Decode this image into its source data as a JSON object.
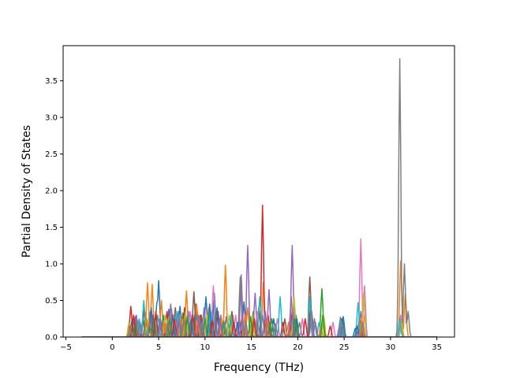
{
  "chart_data": {
    "type": "line",
    "title": "",
    "xlabel": "Frequency (THz)",
    "ylabel": "Partial Density of States",
    "xlim": [
      -5.3,
      36.9
    ],
    "ylim": [
      0,
      3.98
    ],
    "xticks": [
      -5,
      0,
      5,
      10,
      15,
      20,
      25,
      30,
      35
    ],
    "xtick_labels": [
      "−5",
      "0",
      "5",
      "10",
      "15",
      "20",
      "25",
      "30",
      "35"
    ],
    "yticks": [
      0.0,
      0.5,
      1.0,
      1.5,
      2.0,
      2.5,
      3.0,
      3.5
    ],
    "ytick_labels": [
      "0.0",
      "0.5",
      "1.0",
      "1.5",
      "2.0",
      "2.5",
      "3.0",
      "3.5"
    ],
    "grid": false,
    "legend": "none",
    "series": [
      {
        "color": "#1f77b4",
        "peaks": [
          [
            2.5,
            0.28
          ],
          [
            3.6,
            0.33
          ],
          [
            4.8,
            0.46
          ],
          [
            5.0,
            0.77
          ],
          [
            6.1,
            0.38
          ],
          [
            7.3,
            0.42
          ],
          [
            9.0,
            0.45
          ],
          [
            10.1,
            0.55
          ],
          [
            11.0,
            0.6
          ],
          [
            12.3,
            0.28
          ],
          [
            14.2,
            0.48
          ],
          [
            16.0,
            0.18
          ],
          [
            19.4,
            0.2
          ],
          [
            24.7,
            0.25
          ],
          [
            26.2,
            0.12
          ]
        ]
      },
      {
        "color": "#ff7f0e",
        "peaks": [
          [
            2.8,
            0.22
          ],
          [
            3.8,
            0.74
          ],
          [
            4.3,
            0.72
          ],
          [
            5.3,
            0.5
          ],
          [
            6.4,
            0.38
          ],
          [
            8.0,
            0.63
          ],
          [
            9.1,
            0.45
          ],
          [
            10.4,
            0.4
          ],
          [
            12.2,
            0.98
          ],
          [
            13.0,
            0.3
          ],
          [
            14.6,
            0.4
          ],
          [
            16.3,
            0.75
          ],
          [
            19.5,
            0.4
          ],
          [
            21.3,
            0.3
          ],
          [
            27.2,
            0.3
          ],
          [
            31.1,
            1.04
          ],
          [
            31.6,
            0.6
          ]
        ]
      },
      {
        "color": "#2ca02c",
        "peaks": [
          [
            2.3,
            0.18
          ],
          [
            3.3,
            0.25
          ],
          [
            5.5,
            0.3
          ],
          [
            7.6,
            0.33
          ],
          [
            9.6,
            0.3
          ],
          [
            12.5,
            0.2
          ],
          [
            15.2,
            0.35
          ],
          [
            17.2,
            0.25
          ],
          [
            19.8,
            0.3
          ],
          [
            22.6,
            0.66
          ],
          [
            26.9,
            0.22
          ],
          [
            31.1,
            0.15
          ]
        ]
      },
      {
        "color": "#d62728",
        "peaks": [
          [
            2.0,
            0.42
          ],
          [
            3.4,
            0.37
          ],
          [
            5.9,
            0.35
          ],
          [
            7.8,
            0.4
          ],
          [
            9.5,
            0.3
          ],
          [
            11.4,
            0.35
          ],
          [
            13.7,
            0.25
          ],
          [
            16.2,
            1.8
          ],
          [
            16.8,
            0.3
          ],
          [
            19.4,
            0.35
          ],
          [
            21.4,
            0.45
          ],
          [
            26.7,
            0.25
          ],
          [
            31.1,
            0.3
          ]
        ]
      },
      {
        "color": "#9467bd",
        "peaks": [
          [
            2.6,
            0.3
          ],
          [
            4.1,
            0.35
          ],
          [
            6.3,
            0.45
          ],
          [
            8.2,
            0.35
          ],
          [
            9.9,
            0.4
          ],
          [
            11.7,
            0.3
          ],
          [
            13.9,
            0.85
          ],
          [
            14.6,
            1.25
          ],
          [
            15.4,
            0.6
          ],
          [
            16.9,
            0.65
          ],
          [
            19.4,
            1.25
          ],
          [
            21.5,
            0.35
          ],
          [
            26.8,
            0.35
          ]
        ]
      },
      {
        "color": "#8c564b",
        "peaks": [
          [
            2.2,
            0.25
          ],
          [
            4.4,
            0.3
          ],
          [
            6.8,
            0.4
          ],
          [
            8.8,
            0.62
          ],
          [
            10.7,
            0.3
          ],
          [
            12.9,
            0.35
          ],
          [
            15.8,
            0.4
          ],
          [
            18.6,
            0.25
          ],
          [
            21.3,
            0.82
          ],
          [
            24.8,
            0.25
          ],
          [
            27.0,
            0.2
          ]
        ]
      },
      {
        "color": "#e377c2",
        "peaks": [
          [
            2.4,
            0.2
          ],
          [
            4.6,
            0.25
          ],
          [
            6.6,
            0.3
          ],
          [
            8.4,
            0.35
          ],
          [
            10.9,
            0.7
          ],
          [
            13.3,
            0.3
          ],
          [
            15.6,
            0.35
          ],
          [
            17.8,
            0.25
          ],
          [
            20.5,
            0.25
          ],
          [
            23.8,
            0.2
          ],
          [
            26.8,
            1.34
          ],
          [
            27.2,
            0.7
          ],
          [
            31.1,
            0.3
          ]
        ]
      },
      {
        "color": "#7f7f7f",
        "peaks": [
          [
            2.7,
            0.2
          ],
          [
            5.1,
            0.25
          ],
          [
            7.1,
            0.35
          ],
          [
            9.3,
            0.3
          ],
          [
            11.1,
            0.35
          ],
          [
            13.8,
            0.82
          ],
          [
            16.2,
            0.3
          ],
          [
            19.2,
            0.3
          ],
          [
            21.8,
            0.25
          ],
          [
            24.6,
            0.27
          ],
          [
            26.6,
            0.2
          ],
          [
            31.0,
            3.8
          ],
          [
            31.5,
            1.0
          ],
          [
            31.9,
            0.35
          ]
        ]
      },
      {
        "color": "#bcbd22",
        "peaks": [
          [
            1.8,
            0.2
          ],
          [
            3.9,
            0.25
          ],
          [
            5.7,
            0.3
          ],
          [
            7.9,
            0.35
          ],
          [
            10.2,
            0.3
          ],
          [
            12.6,
            0.3
          ],
          [
            15.1,
            0.3
          ],
          [
            19.6,
            0.55
          ],
          [
            22.8,
            0.3
          ],
          [
            27.1,
            0.6
          ],
          [
            31.2,
            0.2
          ]
        ]
      },
      {
        "color": "#17becf",
        "peaks": [
          [
            2.9,
            0.25
          ],
          [
            3.4,
            0.5
          ],
          [
            4.9,
            0.3
          ],
          [
            6.9,
            0.35
          ],
          [
            8.6,
            0.3
          ],
          [
            10.6,
            0.35
          ],
          [
            12.8,
            0.3
          ],
          [
            15.9,
            0.55
          ],
          [
            18.1,
            0.55
          ],
          [
            21.3,
            0.55
          ],
          [
            22.3,
            0.2
          ],
          [
            24.7,
            0.22
          ],
          [
            26.5,
            0.47
          ],
          [
            31.0,
            0.25
          ]
        ]
      },
      {
        "color": "#1f77b4",
        "peaks": [
          [
            2.1,
            0.22
          ],
          [
            4.2,
            0.4
          ],
          [
            6.5,
            0.3
          ],
          [
            8.5,
            0.25
          ],
          [
            10.5,
            0.45
          ],
          [
            11.3,
            0.4
          ],
          [
            13.5,
            0.2
          ],
          [
            17.4,
            0.25
          ],
          [
            19.9,
            0.25
          ],
          [
            24.9,
            0.28
          ],
          [
            26.4,
            0.15
          ]
        ]
      },
      {
        "color": "#ff7f0e",
        "peaks": [
          [
            2.0,
            0.15
          ],
          [
            3.7,
            0.25
          ],
          [
            5.6,
            0.2
          ],
          [
            7.4,
            0.25
          ],
          [
            9.2,
            0.22
          ],
          [
            11.8,
            0.25
          ],
          [
            14.3,
            0.3
          ],
          [
            16.7,
            0.25
          ],
          [
            19.0,
            0.2
          ],
          [
            22.5,
            0.15
          ],
          [
            26.9,
            0.25
          ]
        ]
      },
      {
        "color": "#2ca02c",
        "peaks": [
          [
            2.5,
            0.18
          ],
          [
            4.5,
            0.22
          ],
          [
            6.2,
            0.25
          ],
          [
            8.1,
            0.28
          ],
          [
            10.0,
            0.25
          ],
          [
            12.0,
            0.22
          ],
          [
            14.9,
            0.28
          ],
          [
            17.0,
            0.2
          ],
          [
            19.7,
            0.25
          ],
          [
            22.7,
            0.3
          ]
        ]
      },
      {
        "color": "#d62728",
        "peaks": [
          [
            2.3,
            0.3
          ],
          [
            4.7,
            0.35
          ],
          [
            6.7,
            0.25
          ],
          [
            8.7,
            0.3
          ],
          [
            10.8,
            0.22
          ],
          [
            13.1,
            0.2
          ],
          [
            15.3,
            0.25
          ],
          [
            18.4,
            0.2
          ],
          [
            20.8,
            0.25
          ],
          [
            23.5,
            0.15
          ]
        ]
      },
      {
        "color": "#9467bd",
        "peaks": [
          [
            3.0,
            0.2
          ],
          [
            5.2,
            0.25
          ],
          [
            7.2,
            0.3
          ],
          [
            9.4,
            0.28
          ],
          [
            11.6,
            0.25
          ],
          [
            14.0,
            0.3
          ],
          [
            16.5,
            0.35
          ],
          [
            19.3,
            0.55
          ],
          [
            21.9,
            0.2
          ],
          [
            24.5,
            0.15
          ]
        ]
      },
      {
        "color": "#7f7f7f",
        "peaks": [
          [
            1.9,
            0.15
          ],
          [
            4.0,
            0.2
          ],
          [
            6.0,
            0.22
          ],
          [
            7.7,
            0.25
          ],
          [
            9.7,
            0.22
          ],
          [
            12.1,
            0.2
          ],
          [
            14.4,
            0.22
          ],
          [
            17.6,
            0.18
          ],
          [
            20.2,
            0.2
          ],
          [
            24.8,
            0.18
          ],
          [
            27.0,
            0.2
          ]
        ]
      }
    ]
  }
}
